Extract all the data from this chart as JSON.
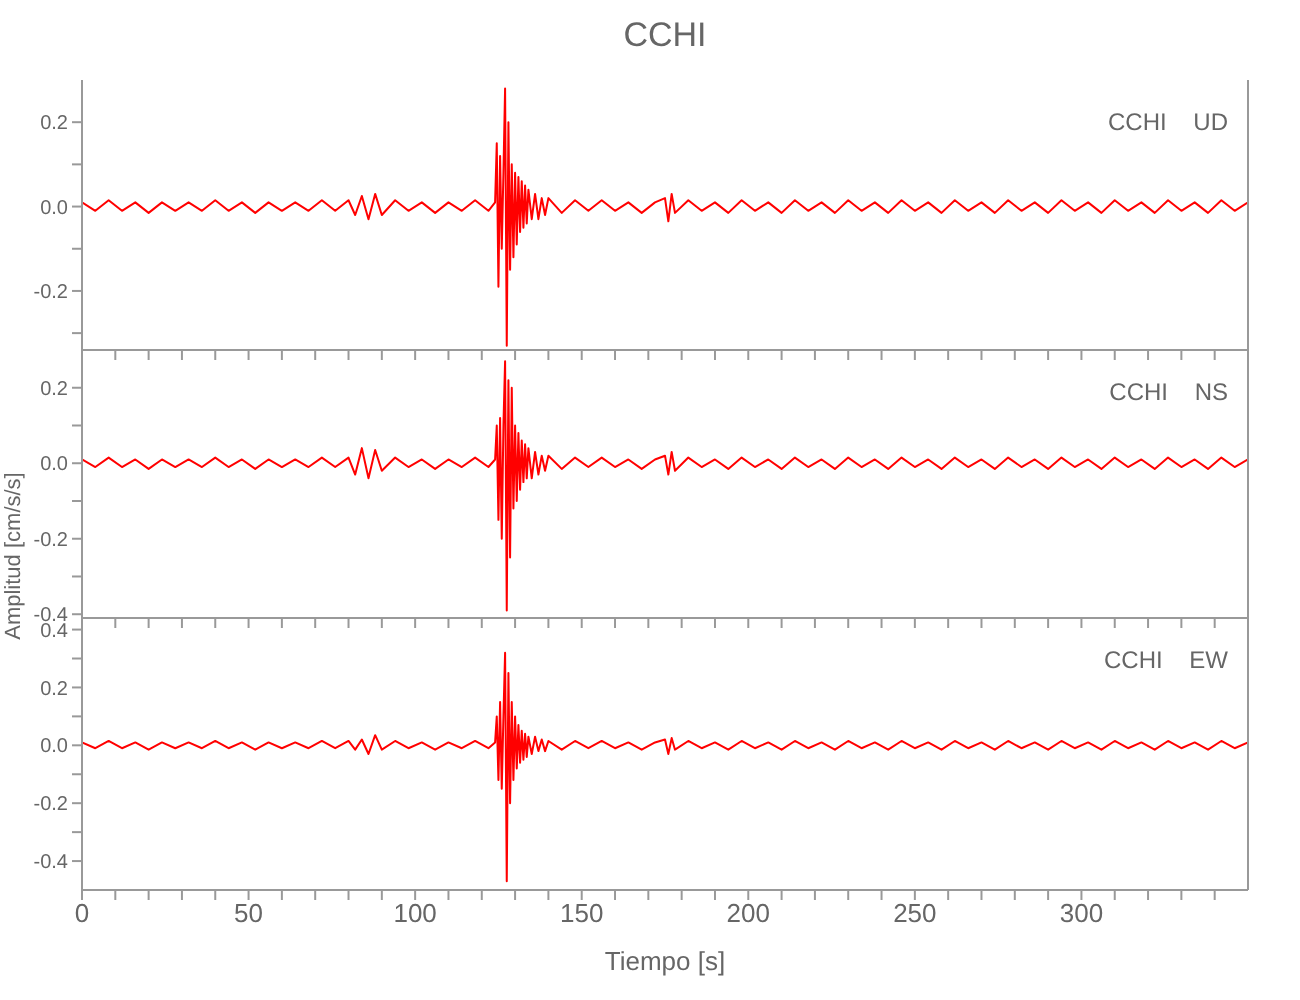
{
  "chart_data": [
    {
      "type": "line",
      "title": "CCHI",
      "annotations": [
        "CCHI    UD"
      ],
      "tick_labels": "y",
      "line_style": "solid",
      "marker": "none",
      "grid": false,
      "xlim": [
        0,
        350
      ],
      "xticks": [
        0,
        {
          "value": 10,
          "label": null
        },
        {
          "value": 20,
          "label": null
        },
        {
          "value": 30,
          "label": null
        },
        {
          "value": 40,
          "label": null
        },
        50,
        {
          "value": 60,
          "label": null
        },
        {
          "value": 70,
          "label": null
        },
        {
          "value": 80,
          "label": null
        },
        {
          "value": 90,
          "label": null
        },
        100,
        {
          "value": 110,
          "label": null
        },
        {
          "value": 120,
          "label": null
        },
        {
          "value": 130,
          "label": null
        },
        {
          "value": 140,
          "label": null
        },
        150,
        {
          "value": 160,
          "label": null
        },
        {
          "value": 170,
          "label": null
        },
        {
          "value": 180,
          "label": null
        },
        {
          "value": 190,
          "label": null
        },
        200,
        {
          "value": 210,
          "label": null
        },
        {
          "value": 220,
          "label": null
        },
        {
          "value": 230,
          "label": null
        },
        {
          "value": 240,
          "label": null
        },
        250,
        {
          "value": 260,
          "label": null
        },
        {
          "value": 270,
          "label": null
        },
        {
          "value": 280,
          "label": null
        },
        {
          "value": 290,
          "label": null
        },
        300,
        {
          "value": 310,
          "label": null
        },
        {
          "value": 320,
          "label": null
        },
        {
          "value": 330,
          "label": null
        },
        {
          "value": 340,
          "label": null
        }
      ],
      "ylim": [
        -0.34,
        0.3
      ],
      "yticks": [
        {
          "value": -0.3,
          "label": null
        },
        -0.2,
        {
          "value": -0.1,
          "label": null
        },
        {
          "value": 0,
          "label": "0.0"
        },
        {
          "value": 0.1,
          "label": null
        },
        0.2
      ],
      "x": [
        0,
        4,
        8,
        12,
        16,
        20,
        24,
        28,
        32,
        36,
        40,
        44,
        48,
        52,
        56,
        60,
        64,
        68,
        72,
        76,
        80,
        82,
        84,
        86,
        88,
        90,
        94,
        98,
        102,
        106,
        110,
        114,
        118,
        122,
        124,
        124.5,
        125,
        125.5,
        126,
        126.5,
        127,
        127.5,
        128,
        128.5,
        129,
        129.5,
        130,
        130.5,
        131,
        131.5,
        132,
        132.5,
        133,
        133.5,
        134,
        135,
        136,
        137,
        138,
        139,
        140,
        144,
        148,
        152,
        156,
        160,
        164,
        168,
        172,
        175,
        176,
        177,
        178,
        182,
        186,
        190,
        194,
        198,
        202,
        206,
        210,
        214,
        218,
        222,
        226,
        230,
        234,
        238,
        242,
        246,
        250,
        254,
        258,
        262,
        266,
        270,
        274,
        278,
        282,
        286,
        290,
        294,
        298,
        302,
        306,
        310,
        314,
        318,
        322,
        326,
        330,
        334,
        338,
        342,
        346,
        350
      ],
      "series": [
        {
          "color": "#ff0000",
          "values": [
            0.01,
            -0.01,
            0.015,
            -0.01,
            0.01,
            -0.015,
            0.01,
            -0.01,
            0.01,
            -0.01,
            0.015,
            -0.01,
            0.01,
            -0.015,
            0.01,
            -0.01,
            0.01,
            -0.01,
            0.015,
            -0.01,
            0.015,
            -0.02,
            0.025,
            -0.03,
            0.03,
            -0.02,
            0.015,
            -0.01,
            0.01,
            -0.015,
            0.01,
            -0.01,
            0.015,
            -0.01,
            0.01,
            0.15,
            -0.19,
            0.12,
            -0.1,
            0.08,
            0.28,
            -0.33,
            0.2,
            -0.15,
            0.1,
            -0.12,
            0.08,
            -0.09,
            0.07,
            -0.06,
            0.06,
            -0.05,
            0.05,
            -0.04,
            0.04,
            -0.03,
            0.03,
            -0.03,
            0.02,
            -0.02,
            0.02,
            -0.015,
            0.015,
            -0.01,
            0.015,
            -0.01,
            0.01,
            -0.015,
            0.01,
            0.02,
            -0.035,
            0.03,
            -0.015,
            0.015,
            -0.01,
            0.01,
            -0.015,
            0.015,
            -0.01,
            0.01,
            -0.015,
            0.015,
            -0.01,
            0.01,
            -0.015,
            0.015,
            -0.01,
            0.01,
            -0.015,
            0.015,
            -0.01,
            0.01,
            -0.015,
            0.015,
            -0.01,
            0.01,
            -0.015,
            0.015,
            -0.01,
            0.01,
            -0.015,
            0.015,
            -0.01,
            0.01,
            -0.015,
            0.015,
            -0.01,
            0.01,
            -0.015,
            0.015,
            -0.01,
            0.01,
            -0.015,
            0.015,
            -0.01,
            0.01
          ]
        }
      ]
    },
    {
      "type": "line",
      "ylabel": "Amplitud [cm/s/s]",
      "annotations": [
        "CCHI    NS"
      ],
      "tick_labels": "y",
      "line_style": "solid",
      "marker": "none",
      "grid": false,
      "xlim": [
        0,
        350
      ],
      "xticks": [
        0,
        {
          "value": 10,
          "label": null
        },
        {
          "value": 20,
          "label": null
        },
        {
          "value": 30,
          "label": null
        },
        {
          "value": 40,
          "label": null
        },
        50,
        {
          "value": 60,
          "label": null
        },
        {
          "value": 70,
          "label": null
        },
        {
          "value": 80,
          "label": null
        },
        {
          "value": 90,
          "label": null
        },
        100,
        {
          "value": 110,
          "label": null
        },
        {
          "value": 120,
          "label": null
        },
        {
          "value": 130,
          "label": null
        },
        {
          "value": 140,
          "label": null
        },
        150,
        {
          "value": 160,
          "label": null
        },
        {
          "value": 170,
          "label": null
        },
        {
          "value": 180,
          "label": null
        },
        {
          "value": 190,
          "label": null
        },
        200,
        {
          "value": 210,
          "label": null
        },
        {
          "value": 220,
          "label": null
        },
        {
          "value": 230,
          "label": null
        },
        {
          "value": 240,
          "label": null
        },
        250,
        {
          "value": 260,
          "label": null
        },
        {
          "value": 270,
          "label": null
        },
        {
          "value": 280,
          "label": null
        },
        {
          "value": 290,
          "label": null
        },
        300,
        {
          "value": 310,
          "label": null
        },
        {
          "value": 320,
          "label": null
        },
        {
          "value": 330,
          "label": null
        },
        {
          "value": 340,
          "label": null
        }
      ],
      "ylim": [
        -0.41,
        0.3
      ],
      "yticks": [
        -0.4,
        {
          "value": -0.3,
          "label": null
        },
        -0.2,
        {
          "value": -0.1,
          "label": null
        },
        {
          "value": 0,
          "label": "0.0"
        },
        {
          "value": 0.1,
          "label": null
        },
        0.2
      ],
      "x": [
        0,
        4,
        8,
        12,
        16,
        20,
        24,
        28,
        32,
        36,
        40,
        44,
        48,
        52,
        56,
        60,
        64,
        68,
        72,
        76,
        80,
        82,
        84,
        86,
        88,
        90,
        94,
        98,
        102,
        106,
        110,
        114,
        118,
        122,
        124,
        124.5,
        125,
        125.5,
        126,
        126.5,
        127,
        127.5,
        128,
        128.5,
        129,
        129.5,
        130,
        130.5,
        131,
        131.5,
        132,
        132.5,
        133,
        133.5,
        134,
        135,
        136,
        137,
        138,
        139,
        140,
        144,
        148,
        152,
        156,
        160,
        164,
        168,
        172,
        175,
        176,
        177,
        178,
        182,
        186,
        190,
        194,
        198,
        202,
        206,
        210,
        214,
        218,
        222,
        226,
        230,
        234,
        238,
        242,
        246,
        250,
        254,
        258,
        262,
        266,
        270,
        274,
        278,
        282,
        286,
        290,
        294,
        298,
        302,
        306,
        310,
        314,
        318,
        322,
        326,
        330,
        334,
        338,
        342,
        346,
        350
      ],
      "series": [
        {
          "color": "#ff0000",
          "values": [
            0.01,
            -0.01,
            0.015,
            -0.01,
            0.01,
            -0.015,
            0.01,
            -0.01,
            0.01,
            -0.01,
            0.015,
            -0.01,
            0.01,
            -0.015,
            0.01,
            -0.01,
            0.01,
            -0.01,
            0.015,
            -0.01,
            0.015,
            -0.03,
            0.04,
            -0.04,
            0.035,
            -0.02,
            0.015,
            -0.01,
            0.01,
            -0.015,
            0.01,
            -0.01,
            0.015,
            -0.01,
            0.01,
            0.1,
            -0.15,
            0.12,
            -0.2,
            0.1,
            0.27,
            -0.39,
            0.22,
            -0.25,
            0.2,
            -0.12,
            0.1,
            -0.1,
            0.08,
            -0.07,
            0.06,
            -0.05,
            0.05,
            -0.04,
            0.04,
            -0.04,
            0.03,
            -0.03,
            0.02,
            -0.02,
            0.02,
            -0.015,
            0.015,
            -0.01,
            0.015,
            -0.01,
            0.01,
            -0.015,
            0.01,
            0.02,
            -0.03,
            0.03,
            -0.02,
            0.015,
            -0.01,
            0.01,
            -0.015,
            0.015,
            -0.01,
            0.01,
            -0.015,
            0.015,
            -0.01,
            0.01,
            -0.015,
            0.015,
            -0.01,
            0.01,
            -0.015,
            0.015,
            -0.01,
            0.01,
            -0.015,
            0.015,
            -0.01,
            0.01,
            -0.015,
            0.015,
            -0.01,
            0.01,
            -0.015,
            0.015,
            -0.01,
            0.01,
            -0.015,
            0.015,
            -0.01,
            0.01,
            -0.015,
            0.015,
            -0.01,
            0.01,
            -0.015,
            0.015,
            -0.01,
            0.01
          ]
        }
      ]
    },
    {
      "type": "line",
      "xlabel": "Tiempo [s]",
      "annotations": [
        "CCHI    EW"
      ],
      "line_style": "solid",
      "marker": "none",
      "grid": false,
      "xlim": [
        0,
        350
      ],
      "xticks": [
        0,
        {
          "value": 10,
          "label": null
        },
        {
          "value": 20,
          "label": null
        },
        {
          "value": 30,
          "label": null
        },
        {
          "value": 40,
          "label": null
        },
        50,
        {
          "value": 60,
          "label": null
        },
        {
          "value": 70,
          "label": null
        },
        {
          "value": 80,
          "label": null
        },
        {
          "value": 90,
          "label": null
        },
        100,
        {
          "value": 110,
          "label": null
        },
        {
          "value": 120,
          "label": null
        },
        {
          "value": 130,
          "label": null
        },
        {
          "value": 140,
          "label": null
        },
        150,
        {
          "value": 160,
          "label": null
        },
        {
          "value": 170,
          "label": null
        },
        {
          "value": 180,
          "label": null
        },
        {
          "value": 190,
          "label": null
        },
        200,
        {
          "value": 210,
          "label": null
        },
        {
          "value": 220,
          "label": null
        },
        {
          "value": 230,
          "label": null
        },
        {
          "value": 240,
          "label": null
        },
        250,
        {
          "value": 260,
          "label": null
        },
        {
          "value": 270,
          "label": null
        },
        {
          "value": 280,
          "label": null
        },
        {
          "value": 290,
          "label": null
        },
        300,
        {
          "value": 310,
          "label": null
        },
        {
          "value": 320,
          "label": null
        },
        {
          "value": 330,
          "label": null
        },
        {
          "value": 340,
          "label": null
        }
      ],
      "ylim": [
        -0.5,
        0.44
      ],
      "yticks": [
        -0.4,
        {
          "value": -0.3,
          "label": null
        },
        -0.2,
        {
          "value": -0.1,
          "label": null
        },
        {
          "value": 0,
          "label": "0.0"
        },
        {
          "value": 0.1,
          "label": null
        },
        0.2,
        {
          "value": 0.3,
          "label": null
        },
        0.4
      ],
      "x": [
        0,
        4,
        8,
        12,
        16,
        20,
        24,
        28,
        32,
        36,
        40,
        44,
        48,
        52,
        56,
        60,
        64,
        68,
        72,
        76,
        80,
        82,
        84,
        86,
        88,
        90,
        94,
        98,
        102,
        106,
        110,
        114,
        118,
        122,
        124,
        124.5,
        125,
        125.5,
        126,
        126.5,
        127,
        127.5,
        128,
        128.5,
        129,
        129.5,
        130,
        130.5,
        131,
        131.5,
        132,
        132.5,
        133,
        133.5,
        134,
        135,
        136,
        137,
        138,
        139,
        140,
        144,
        148,
        152,
        156,
        160,
        164,
        168,
        172,
        175,
        176,
        177,
        178,
        182,
        186,
        190,
        194,
        198,
        202,
        206,
        210,
        214,
        218,
        222,
        226,
        230,
        234,
        238,
        242,
        246,
        250,
        254,
        258,
        262,
        266,
        270,
        274,
        278,
        282,
        286,
        290,
        294,
        298,
        302,
        306,
        310,
        314,
        318,
        322,
        326,
        330,
        334,
        338,
        342,
        346,
        350
      ],
      "series": [
        {
          "color": "#ff0000",
          "values": [
            0.01,
            -0.01,
            0.015,
            -0.01,
            0.01,
            -0.015,
            0.01,
            -0.01,
            0.01,
            -0.01,
            0.015,
            -0.01,
            0.01,
            -0.015,
            0.01,
            -0.01,
            0.01,
            -0.01,
            0.015,
            -0.01,
            0.015,
            -0.015,
            0.02,
            -0.03,
            0.035,
            -0.015,
            0.015,
            -0.01,
            0.01,
            -0.015,
            0.01,
            -0.01,
            0.015,
            -0.01,
            0.01,
            0.1,
            -0.12,
            0.15,
            -0.15,
            0.1,
            0.32,
            -0.47,
            0.25,
            -0.2,
            0.15,
            -0.12,
            0.1,
            -0.08,
            0.07,
            -0.06,
            0.05,
            -0.05,
            0.04,
            -0.04,
            0.03,
            -0.03,
            0.03,
            -0.02,
            0.02,
            -0.02,
            0.015,
            -0.015,
            0.015,
            -0.01,
            0.015,
            -0.01,
            0.01,
            -0.015,
            0.01,
            0.02,
            -0.03,
            0.025,
            -0.015,
            0.015,
            -0.01,
            0.01,
            -0.015,
            0.015,
            -0.01,
            0.01,
            -0.015,
            0.015,
            -0.01,
            0.01,
            -0.015,
            0.015,
            -0.01,
            0.01,
            -0.015,
            0.015,
            -0.01,
            0.01,
            -0.015,
            0.015,
            -0.01,
            0.01,
            -0.015,
            0.015,
            -0.01,
            0.01,
            -0.015,
            0.015,
            -0.01,
            0.01,
            -0.015,
            0.015,
            -0.01,
            0.01,
            -0.015,
            0.015,
            -0.01,
            0.01,
            -0.015,
            0.015,
            -0.01,
            0.01
          ]
        }
      ]
    }
  ]
}
